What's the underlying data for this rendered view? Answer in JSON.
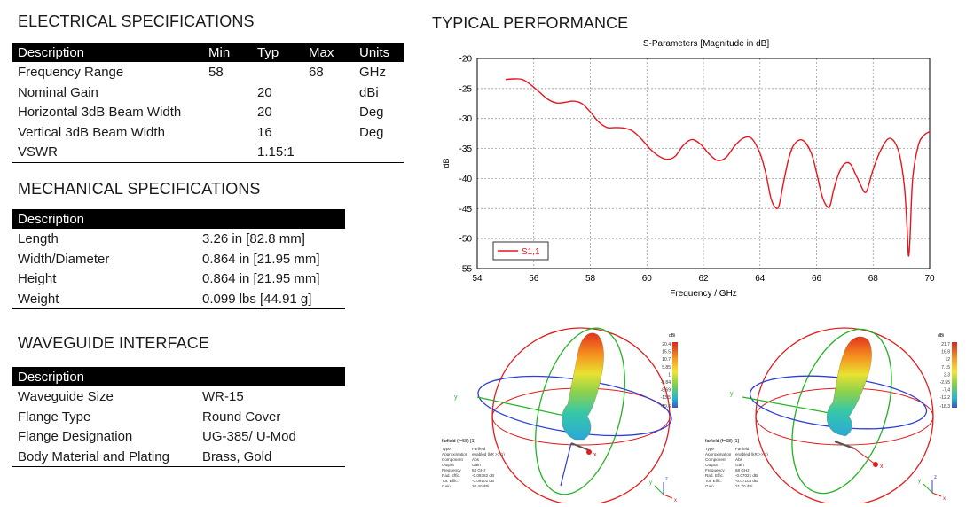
{
  "electrical": {
    "title": "ELECTRICAL SPECIFICATIONS",
    "headers": [
      "Description",
      "Min",
      "Typ",
      "Max",
      "Units"
    ],
    "rows": [
      [
        "Frequency Range",
        "58",
        "",
        "68",
        "GHz"
      ],
      [
        "Nominal Gain",
        "",
        "20",
        "",
        "dBi"
      ],
      [
        "Horizontal 3dB Beam Width",
        "",
        "20",
        "",
        "Deg"
      ],
      [
        "Vertical 3dB Beam Width",
        "",
        "16",
        "",
        "Deg"
      ],
      [
        "VSWR",
        "",
        "1.15:1",
        "",
        ""
      ]
    ]
  },
  "mechanical": {
    "title": "MECHANICAL SPECIFICATIONS",
    "header": "Description",
    "rows": [
      [
        "Length",
        "3.26 in [82.8 mm]"
      ],
      [
        "Width/Diameter",
        "0.864 in [21.95 mm]"
      ],
      [
        "Height",
        "0.864 in [21.95 mm]"
      ],
      [
        "Weight",
        "0.099 lbs [44.91 g]"
      ]
    ]
  },
  "waveguide": {
    "title": "WAVEGUIDE INTERFACE",
    "header": "Description",
    "rows": [
      [
        "Waveguide Size",
        "WR-15"
      ],
      [
        "Flange Type",
        "Round Cover"
      ],
      [
        "Flange Designation",
        "UG-385/ U-Mod"
      ],
      [
        "Body Material and Plating",
        "Brass, Gold"
      ]
    ]
  },
  "performance": {
    "title": "TYPICAL PERFORMANCE"
  },
  "chart_data": {
    "type": "line",
    "title": "S-Parameters [Magnitude in dB]",
    "xlabel": "Frequency / GHz",
    "ylabel": "dB",
    "xlim": [
      54,
      70
    ],
    "ylim": [
      -55,
      -20
    ],
    "xticks": [
      54,
      56,
      58,
      60,
      62,
      64,
      66,
      68,
      70
    ],
    "yticks": [
      -20,
      -25,
      -30,
      -35,
      -40,
      -45,
      -50,
      -55
    ],
    "grid": true,
    "legend": "bottom-left",
    "series": [
      {
        "name": "S1,1",
        "color": "#e8141c",
        "x": [
          55.0,
          55.3,
          55.6,
          55.9,
          56.2,
          56.5,
          56.8,
          57.1,
          57.4,
          57.7,
          58.0,
          58.3,
          58.6,
          58.9,
          59.2,
          59.5,
          59.8,
          60.1,
          60.4,
          60.7,
          61.0,
          61.3,
          61.6,
          61.9,
          62.2,
          62.5,
          62.8,
          63.1,
          63.4,
          63.7,
          64.0,
          64.2,
          64.4,
          64.6,
          64.7,
          64.8,
          65.0,
          65.2,
          65.5,
          65.8,
          66.0,
          66.2,
          66.4,
          66.5,
          66.6,
          66.8,
          67.0,
          67.2,
          67.4,
          67.6,
          67.7,
          67.8,
          68.0,
          68.3,
          68.6,
          68.9,
          69.1,
          69.2,
          69.25,
          69.3,
          69.4,
          69.6,
          69.8,
          70.0
        ],
        "y": [
          -23.5,
          -23.4,
          -23.5,
          -24.4,
          -25.6,
          -26.8,
          -27.4,
          -27.3,
          -27.1,
          -27.5,
          -28.9,
          -30.6,
          -31.5,
          -31.5,
          -31.6,
          -32.1,
          -33.4,
          -35.0,
          -36.2,
          -36.8,
          -36.3,
          -34.4,
          -33.5,
          -34.3,
          -35.9,
          -37.0,
          -36.5,
          -34.6,
          -33.3,
          -33.3,
          -35.8,
          -39.0,
          -43.5,
          -45.0,
          -44.0,
          -41.5,
          -37.0,
          -34.4,
          -33.6,
          -35.6,
          -39.0,
          -43.0,
          -44.8,
          -44.2,
          -42.0,
          -39.0,
          -37.5,
          -37.6,
          -39.5,
          -41.5,
          -42.3,
          -41.8,
          -38.5,
          -35.0,
          -33.3,
          -35.4,
          -41.0,
          -48.0,
          -52.8,
          -50.5,
          -40.0,
          -34.5,
          -32.8,
          -32.2
        ]
      }
    ]
  },
  "farfield_left": {
    "name": "farfield (f=58) [1]",
    "colorbar_unit": "dBi",
    "colorbar_ticks": [
      "20.4",
      "15.5",
      "10.7",
      "5.85",
      "1",
      "-3.84",
      "-8.69",
      "-13.5",
      "-19.6"
    ],
    "info_labels": [
      "Type",
      "Approximation",
      "Component",
      "Output",
      "Frequency",
      "Rad. Effic.",
      "Tot. Effic.",
      "Gain"
    ],
    "info_values": [
      "Farfield",
      "enabled (kR >> 1)",
      "Abs",
      "Gain",
      "58 GHz",
      "-0.08382 dB",
      "-0.09101 dB",
      "20.40 dBi"
    ],
    "axis_x": "x",
    "axis_y": "y",
    "axis_z": "z"
  },
  "farfield_right": {
    "name": "farfield (f=68) [1]",
    "colorbar_unit": "dBi",
    "colorbar_ticks": [
      "21.7",
      "16.8",
      "12",
      "7.15",
      "2.3",
      "-2.55",
      "-7.4",
      "-12.2",
      "-18.3"
    ],
    "info_labels": [
      "Type",
      "Approximation",
      "Component",
      "Output",
      "Frequency",
      "Rad. Effic.",
      "Tot. Effic.",
      "Gain"
    ],
    "info_values": [
      "Farfield",
      "enabled (kR >> 1)",
      "Abs",
      "Gain",
      "68 GHz",
      "-0.07021 dB",
      "-0.07104 dB",
      "21.70 dBi"
    ],
    "axis_x": "x",
    "axis_y": "y",
    "axis_z": "z"
  }
}
